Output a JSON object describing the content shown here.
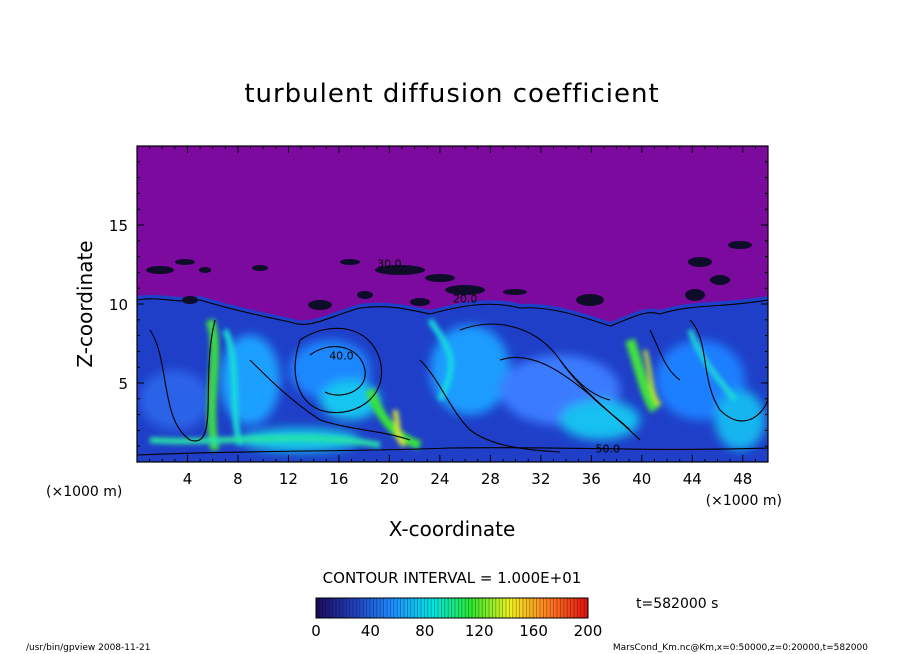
{
  "chart_data": {
    "type": "heatmap",
    "title": "turbulent diffusion coefficient",
    "xlabel": "X-coordinate",
    "ylabel": "Z-coordinate",
    "x_unit_left": "(×1000 m)",
    "x_unit_right": "(×1000 m)",
    "xlim": [
      0,
      50
    ],
    "ylim": [
      0,
      20
    ],
    "xticks": [
      4,
      8,
      12,
      16,
      20,
      24,
      28,
      32,
      36,
      40,
      44,
      48
    ],
    "yticks": [
      5,
      10,
      15
    ],
    "contour_interval_text": "CONTOUR INTERVAL = 1.000E+01",
    "time_label": "t=582000 s",
    "colorbar": {
      "min": 0,
      "max": 200,
      "ticks": [
        0,
        40,
        80,
        120,
        160,
        200
      ],
      "colors": [
        "#1e0a5a",
        "#2040c0",
        "#1e90ff",
        "#00e5e5",
        "#2ee82e",
        "#f0f020",
        "#ff7a20",
        "#e01010"
      ]
    },
    "background_color": "#7c0a9e",
    "contour_labels": [
      {
        "text": "30.0",
        "x": 20,
        "z": 12.3
      },
      {
        "text": "20.0",
        "x": 26,
        "z": 10.1
      },
      {
        "text": "40.0",
        "x": 16.2,
        "z": 6.5
      },
      {
        "text": "50.0",
        "x": 37.3,
        "z": 0.6
      }
    ],
    "note": "Field is ~0 above about z=10-13 km; turbulent mixing layer below with values mostly 20-80, peaks ~100-110 near x=6, 20 and 40."
  },
  "footer": {
    "left": "/usr/bin/gpview   2008-11-21",
    "right": "MarsCond_Km.nc@Km,x=0:50000,z=0:20000,t=582000"
  }
}
